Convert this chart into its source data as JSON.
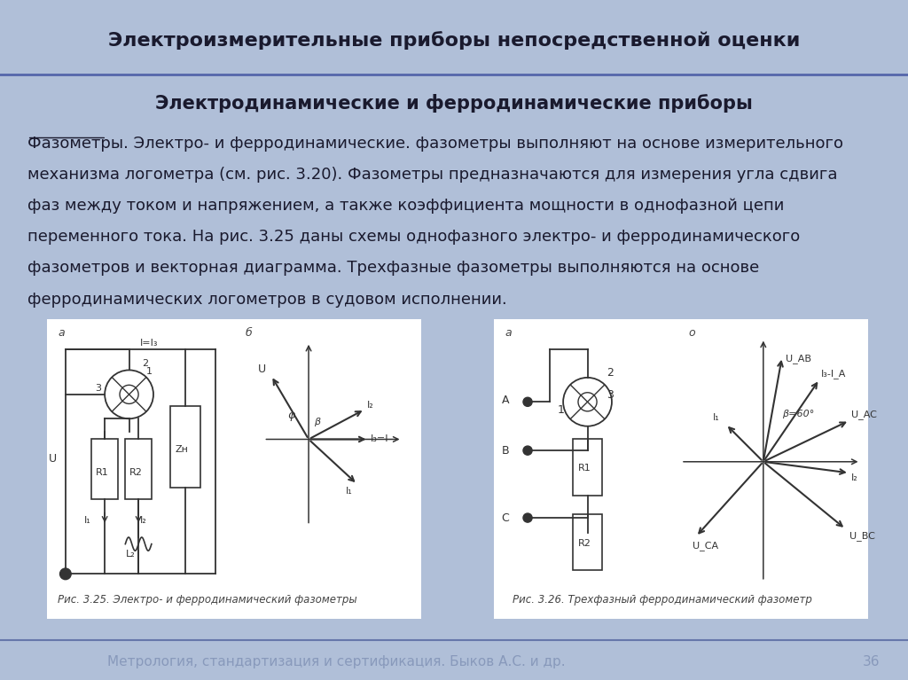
{
  "title1": "Электроизмерительные приборы непосредственной оценки",
  "title2": "Электродинамические и ферродинамические приборы",
  "bg_color_main": "#b0bfd8",
  "header_bg": "#8fa0c8",
  "footer_bg": "#c5cfe0",
  "footer_text": "Метрология, стандартизация и сертификация. Быков А.С. и др.",
  "page_number": "36",
  "body_lines": [
    "Фазометры. Электро- и ферродинамические. фазометры выполняют на основе измерительного",
    "механизма логометра (см. рис. 3.20). Фазометры предназначаются для измерения угла сдвига",
    "фаз между током и напряжением, а также коэффициента мощности в однофазной цепи",
    "переменного тока. На рис. 3.25 даны схемы однофазного электро- и ферродинамического",
    "фазометров и векторная диаграмма. Трехфазные фазометры выполняются на основе",
    "ферродинамических логометров в судовом исполнении."
  ],
  "fig1_caption": "Рис. 3.25. Электро- и ферродинамический фазометры",
  "fig2_caption": "Рис. 3.26. Трехфазный ферродинамический фазометр",
  "title1_fontsize": 16,
  "title2_fontsize": 15,
  "body_fontsize": 13,
  "footer_fontsize": 11
}
